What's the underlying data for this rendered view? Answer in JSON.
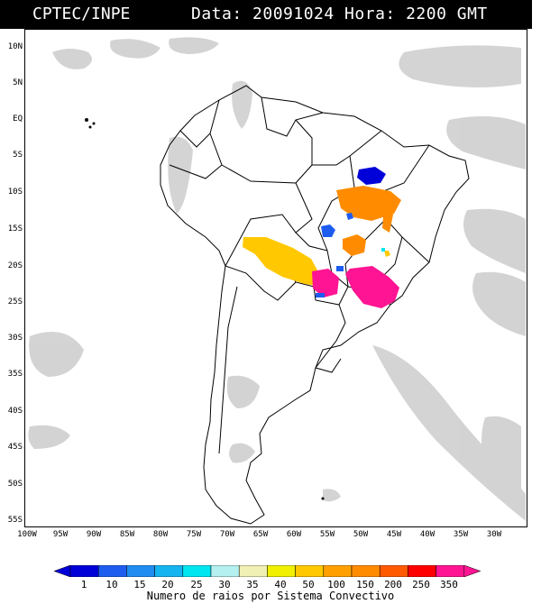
{
  "header": {
    "source": "CPTEC/INPE",
    "datetime": "Data: 20091024 Hora: 2200 GMT"
  },
  "axes": {
    "lat_labels": [
      "10N",
      "5N",
      "EQ",
      "5S",
      "10S",
      "15S",
      "20S",
      "25S",
      "30S",
      "35S",
      "40S",
      "45S",
      "50S",
      "55S"
    ],
    "lon_labels": [
      "100W",
      "95W",
      "90W",
      "85W",
      "80W",
      "75W",
      "70W",
      "65W",
      "60W",
      "55W",
      "50W",
      "45W",
      "40W",
      "35W",
      "30W"
    ]
  },
  "colorbar": {
    "labels": [
      "1",
      "10",
      "15",
      "20",
      "25",
      "30",
      "35",
      "40",
      "50",
      "100",
      "150",
      "200",
      "250",
      "350"
    ],
    "colors": [
      "#0000d8",
      "#1e5cf0",
      "#1e8cf0",
      "#14b4f0",
      "#00e6f0",
      "#b4f0f0",
      "#f0f0b4",
      "#f0f000",
      "#ffc800",
      "#ffa000",
      "#ff8c00",
      "#ff5a00",
      "#ff0000",
      "#ff1493"
    ],
    "title": "Numero de raios por Sistema Convectivo"
  },
  "map": {
    "features": [
      {
        "name": "blue-cluster-north",
        "color": "#0000d8"
      },
      {
        "name": "orange-cluster-bahia",
        "color": "#ff8c00"
      },
      {
        "name": "blue-cluster-center",
        "color": "#1e5cf0"
      },
      {
        "name": "orange-cluster-goias",
        "color": "#ff8c00"
      },
      {
        "name": "yellow-cluster-bolivia",
        "color": "#ffc800"
      },
      {
        "name": "magenta-cluster-paraguay",
        "color": "#ff1493"
      },
      {
        "name": "magenta-cluster-saopaulo",
        "color": "#ff1493"
      }
    ]
  }
}
